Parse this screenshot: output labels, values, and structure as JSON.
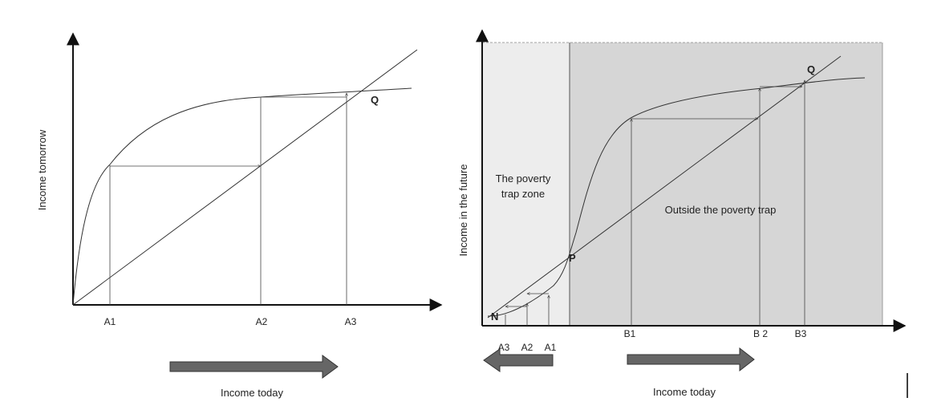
{
  "left": {
    "ylabel": "Income tomorrow",
    "xlabel": "Income today",
    "point_q": "Q",
    "ticks": [
      "A1",
      "A2",
      "A3"
    ]
  },
  "right": {
    "ylabel": "Income in the future",
    "xlabel": "Income today",
    "zone_trap_line1": "The poverty",
    "zone_trap_line2": "trap zone",
    "zone_outside": "Outside the poverty trap",
    "point_n": "N",
    "point_p": "P",
    "point_q": "Q",
    "ticks_a": [
      "A3",
      "A2",
      "A1"
    ],
    "ticks_b": [
      "B1",
      "B 2",
      "B3"
    ]
  },
  "colors": {
    "line": "#333333",
    "trap_zone_fill": "#ededed",
    "outside_fill": "#d6d6d6",
    "arrow_fill": "#666666"
  }
}
